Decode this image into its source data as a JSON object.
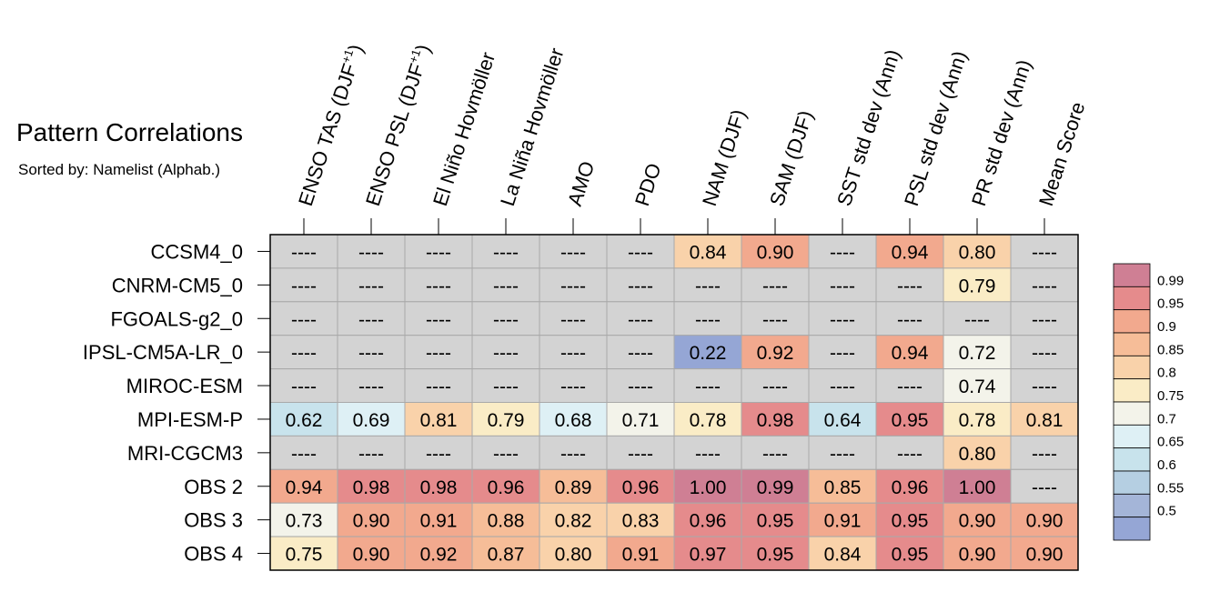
{
  "chart_data": {
    "type": "heatmap",
    "title": "Pattern Correlations",
    "subtitle": "Sorted by: Namelist (Alphab.)",
    "columns": [
      {
        "base": "ENSO TAS (DJF",
        "sup": "+1",
        "close": ")"
      },
      {
        "base": "ENSO PSL (DJF",
        "sup": "+1",
        "close": ")"
      },
      {
        "base": "El Niño Hovmöller"
      },
      {
        "base": "La Niña Hovmöller"
      },
      {
        "base": "AMO"
      },
      {
        "base": "PDO"
      },
      {
        "base": "NAM (DJF)"
      },
      {
        "base": "SAM (DJF)"
      },
      {
        "base": "SST std dev (Ann)"
      },
      {
        "base": "PSL std dev (Ann)"
      },
      {
        "base": "PR std dev (Ann)"
      },
      {
        "base": "Mean Score"
      }
    ],
    "rows": [
      "CCSM4_0",
      "CNRM-CM5_0",
      "FGOALS-g2_0",
      "IPSL-CM5A-LR_0",
      "MIROC-ESM",
      "MPI-ESM-P",
      "MRI-CGCM3",
      "OBS 2",
      "OBS 3",
      "OBS 4"
    ],
    "values": [
      [
        null,
        null,
        null,
        null,
        null,
        null,
        0.84,
        0.9,
        null,
        0.94,
        0.8,
        null
      ],
      [
        null,
        null,
        null,
        null,
        null,
        null,
        null,
        null,
        null,
        null,
        0.79,
        null
      ],
      [
        null,
        null,
        null,
        null,
        null,
        null,
        null,
        null,
        null,
        null,
        null,
        null
      ],
      [
        null,
        null,
        null,
        null,
        null,
        null,
        0.22,
        0.92,
        null,
        0.94,
        0.72,
        null
      ],
      [
        null,
        null,
        null,
        null,
        null,
        null,
        null,
        null,
        null,
        null,
        0.74,
        null
      ],
      [
        0.62,
        0.69,
        0.81,
        0.79,
        0.68,
        0.71,
        0.78,
        0.98,
        0.64,
        0.95,
        0.78,
        0.81
      ],
      [
        null,
        null,
        null,
        null,
        null,
        null,
        null,
        null,
        null,
        null,
        0.8,
        null
      ],
      [
        0.94,
        0.98,
        0.98,
        0.96,
        0.89,
        0.96,
        1.0,
        0.99,
        0.85,
        0.96,
        1.0,
        null
      ],
      [
        0.73,
        0.9,
        0.91,
        0.88,
        0.82,
        0.83,
        0.96,
        0.95,
        0.91,
        0.95,
        0.9,
        0.9
      ],
      [
        0.75,
        0.9,
        0.92,
        0.87,
        0.8,
        0.91,
        0.97,
        0.95,
        0.84,
        0.95,
        0.9,
        0.9
      ]
    ],
    "missing_label": "----",
    "missing_color": "#d3d3d3",
    "colorbar": {
      "labels": [
        "0.99",
        "0.95",
        "0.9",
        "0.85",
        "0.8",
        "0.75",
        "0.7",
        "0.65",
        "0.6",
        "0.55",
        "0.5"
      ],
      "thresholds": [
        0.99,
        0.95,
        0.9,
        0.85,
        0.8,
        0.75,
        0.7,
        0.65,
        0.6,
        0.55,
        0.5
      ],
      "colors_top_to_bottom": [
        "#cf7f94",
        "#e58b8c",
        "#f2a98e",
        "#f6bd98",
        "#f9d2aa",
        "#faecc6",
        "#f3f3ea",
        "#def0f5",
        "#c8e3ec",
        "#b5cfe2",
        "#a4b5d8",
        "#95a6d5"
      ]
    }
  }
}
